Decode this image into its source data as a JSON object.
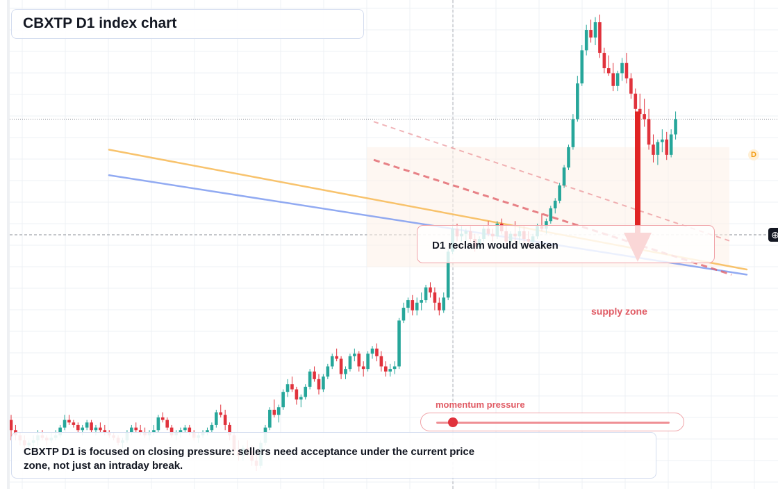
{
  "title": "CBXTP D1 index chart",
  "callout": {
    "text": "D1 reclaim would weaken"
  },
  "supply_zone": {
    "label": "supply zone"
  },
  "momentum": {
    "label": "momentum pressure",
    "value": 0.07
  },
  "note": {
    "text": "CBXTP D1 is focused on closing pressure: sellers need acceptance under the current price zone, not just an intraday break."
  },
  "price_badge": {
    "text": "D"
  },
  "crosshair": {
    "icon": "crosshair-icon",
    "glyph": "⊕"
  },
  "colors": {
    "up": "#26a69a",
    "down": "#e0323c",
    "ma_fast": "#f7b954",
    "ma_slow": "#7e9cf0",
    "trend": "#e05a63",
    "arrow": "#e02424"
  },
  "chart_data": {
    "type": "candlestick",
    "timeframe": "D1",
    "candles": [
      [
        78,
        80,
        70,
        74
      ],
      [
        74,
        76,
        70,
        72
      ],
      [
        72,
        73,
        68,
        70
      ],
      [
        70,
        72,
        66,
        68
      ],
      [
        68,
        70,
        66,
        69
      ],
      [
        69,
        72,
        67,
        70
      ],
      [
        70,
        74,
        68,
        72
      ],
      [
        72,
        74,
        70,
        71
      ],
      [
        71,
        72,
        68,
        70
      ],
      [
        70,
        73,
        69,
        71
      ],
      [
        71,
        74,
        70,
        72
      ],
      [
        72,
        76,
        71,
        75
      ],
      [
        75,
        80,
        74,
        78
      ],
      [
        78,
        80,
        76,
        77
      ],
      [
        77,
        78,
        75,
        76
      ],
      [
        76,
        77,
        73,
        74
      ],
      [
        74,
        76,
        72,
        75
      ],
      [
        75,
        78,
        74,
        77
      ],
      [
        77,
        78,
        73,
        74
      ],
      [
        74,
        76,
        72,
        75
      ],
      [
        75,
        77,
        73,
        74
      ],
      [
        74,
        76,
        72,
        73
      ],
      [
        73,
        74,
        71,
        72
      ],
      [
        72,
        73,
        70,
        71
      ],
      [
        71,
        72,
        68,
        69
      ],
      [
        69,
        71,
        67,
        70
      ],
      [
        70,
        74,
        69,
        73
      ],
      [
        73,
        76,
        72,
        75
      ],
      [
        75,
        77,
        73,
        74
      ],
      [
        74,
        76,
        72,
        73
      ],
      [
        73,
        75,
        71,
        72
      ],
      [
        72,
        74,
        70,
        73
      ],
      [
        73,
        76,
        72,
        74
      ],
      [
        74,
        80,
        73,
        79
      ],
      [
        79,
        81,
        77,
        78
      ],
      [
        78,
        79,
        74,
        75
      ],
      [
        75,
        76,
        71,
        72
      ],
      [
        72,
        74,
        70,
        73
      ],
      [
        73,
        75,
        71,
        74
      ],
      [
        74,
        76,
        73,
        75
      ],
      [
        75,
        76,
        72,
        73
      ],
      [
        73,
        74,
        70,
        71
      ],
      [
        71,
        73,
        69,
        72
      ],
      [
        72,
        74,
        71,
        73
      ],
      [
        73,
        75,
        72,
        74
      ],
      [
        74,
        77,
        73,
        76
      ],
      [
        76,
        82,
        75,
        81
      ],
      [
        81,
        84,
        79,
        80
      ],
      [
        80,
        82,
        74,
        76
      ],
      [
        76,
        77,
        70,
        72
      ],
      [
        72,
        73,
        64,
        66
      ],
      [
        66,
        70,
        62,
        64
      ],
      [
        64,
        68,
        62,
        67
      ],
      [
        67,
        70,
        64,
        66
      ],
      [
        66,
        68,
        60,
        62
      ],
      [
        62,
        65,
        58,
        60
      ],
      [
        60,
        70,
        59,
        69
      ],
      [
        69,
        76,
        68,
        75
      ],
      [
        75,
        83,
        74,
        82
      ],
      [
        82,
        86,
        79,
        80
      ],
      [
        80,
        84,
        77,
        83
      ],
      [
        83,
        90,
        82,
        89
      ],
      [
        89,
        94,
        87,
        92
      ],
      [
        92,
        95,
        89,
        90
      ],
      [
        90,
        91,
        84,
        86
      ],
      [
        86,
        88,
        83,
        87
      ],
      [
        87,
        92,
        86,
        91
      ],
      [
        91,
        98,
        90,
        97
      ],
      [
        97,
        99,
        93,
        94
      ],
      [
        94,
        96,
        88,
        90
      ],
      [
        90,
        96,
        89,
        95
      ],
      [
        95,
        100,
        94,
        99
      ],
      [
        99,
        104,
        98,
        103
      ],
      [
        103,
        106,
        101,
        102
      ],
      [
        102,
        103,
        94,
        96
      ],
      [
        96,
        99,
        94,
        98
      ],
      [
        98,
        104,
        97,
        103
      ],
      [
        103,
        106,
        101,
        104
      ],
      [
        104,
        105,
        97,
        99
      ],
      [
        99,
        101,
        95,
        98
      ],
      [
        98,
        105,
        97,
        104
      ],
      [
        104,
        107,
        102,
        106
      ],
      [
        106,
        108,
        101,
        103
      ],
      [
        103,
        105,
        97,
        99
      ],
      [
        99,
        101,
        95,
        97
      ],
      [
        97,
        100,
        95,
        98
      ],
      [
        98,
        101,
        96,
        99
      ],
      [
        99,
        118,
        98,
        117
      ],
      [
        117,
        124,
        116,
        122
      ],
      [
        122,
        126,
        120,
        125
      ],
      [
        125,
        127,
        119,
        121
      ],
      [
        121,
        126,
        119,
        124
      ],
      [
        124,
        128,
        121,
        125
      ],
      [
        125,
        131,
        124,
        130
      ],
      [
        130,
        132,
        126,
        128
      ],
      [
        128,
        130,
        121,
        124
      ],
      [
        124,
        126,
        119,
        121
      ],
      [
        121,
        128,
        120,
        126
      ],
      [
        126,
        145,
        125,
        144
      ],
      [
        144,
        154,
        143,
        153
      ],
      [
        153,
        155,
        148,
        150
      ],
      [
        150,
        154,
        148,
        151
      ],
      [
        151,
        153,
        148,
        152
      ],
      [
        152,
        154,
        148,
        149
      ],
      [
        149,
        151,
        144,
        146
      ],
      [
        146,
        150,
        145,
        149
      ],
      [
        149,
        154,
        148,
        153
      ],
      [
        153,
        156,
        150,
        151
      ],
      [
        151,
        153,
        148,
        150
      ],
      [
        150,
        156,
        149,
        155
      ],
      [
        155,
        157,
        151,
        152
      ],
      [
        152,
        154,
        146,
        148
      ],
      [
        148,
        152,
        147,
        151
      ],
      [
        151,
        156,
        148,
        150
      ],
      [
        150,
        154,
        147,
        152
      ],
      [
        152,
        154,
        147,
        149
      ],
      [
        149,
        152,
        146,
        148
      ],
      [
        148,
        151,
        146,
        150
      ],
      [
        150,
        155,
        149,
        154
      ],
      [
        154,
        159,
        152,
        153
      ],
      [
        153,
        157,
        151,
        156
      ],
      [
        156,
        162,
        155,
        161
      ],
      [
        161,
        165,
        159,
        164
      ],
      [
        164,
        171,
        163,
        170
      ],
      [
        170,
        178,
        169,
        177
      ],
      [
        177,
        186,
        176,
        185
      ],
      [
        185,
        198,
        184,
        196
      ],
      [
        196,
        213,
        195,
        210
      ],
      [
        210,
        225,
        209,
        223
      ],
      [
        223,
        233,
        221,
        231
      ],
      [
        231,
        235,
        226,
        228
      ],
      [
        228,
        236,
        225,
        234
      ],
      [
        234,
        237,
        220,
        222
      ],
      [
        222,
        224,
        214,
        216
      ],
      [
        216,
        221,
        213,
        214
      ],
      [
        214,
        218,
        207,
        209
      ],
      [
        209,
        215,
        207,
        214
      ],
      [
        214,
        220,
        211,
        218
      ],
      [
        218,
        222,
        210,
        212
      ],
      [
        212,
        214,
        204,
        206
      ],
      [
        206,
        208,
        198,
        200
      ],
      [
        200,
        206,
        196,
        198
      ],
      [
        198,
        204,
        193,
        196
      ],
      [
        196,
        200,
        184,
        186
      ],
      [
        186,
        190,
        179,
        182
      ],
      [
        182,
        188,
        178,
        187
      ],
      [
        187,
        192,
        183,
        188
      ],
      [
        188,
        191,
        180,
        182
      ],
      [
        182,
        192,
        181,
        190
      ],
      [
        190,
        199,
        188,
        196
      ]
    ],
    "ylim": [
      52,
      240
    ],
    "moving_averages": [
      {
        "name": "",
        "start": 184,
        "end": 137
      },
      {
        "name": "",
        "start": 174,
        "end": 135
      }
    ],
    "trendlines": [
      {
        "style": "dashed",
        "start": 180,
        "end": 135
      },
      {
        "style": "dashed-light",
        "start": 195,
        "end": 148
      }
    ],
    "zone": {
      "from": 138,
      "to": 185
    },
    "grid": true,
    "arrow": {
      "direction": "down",
      "from": 199,
      "to": 140
    }
  }
}
